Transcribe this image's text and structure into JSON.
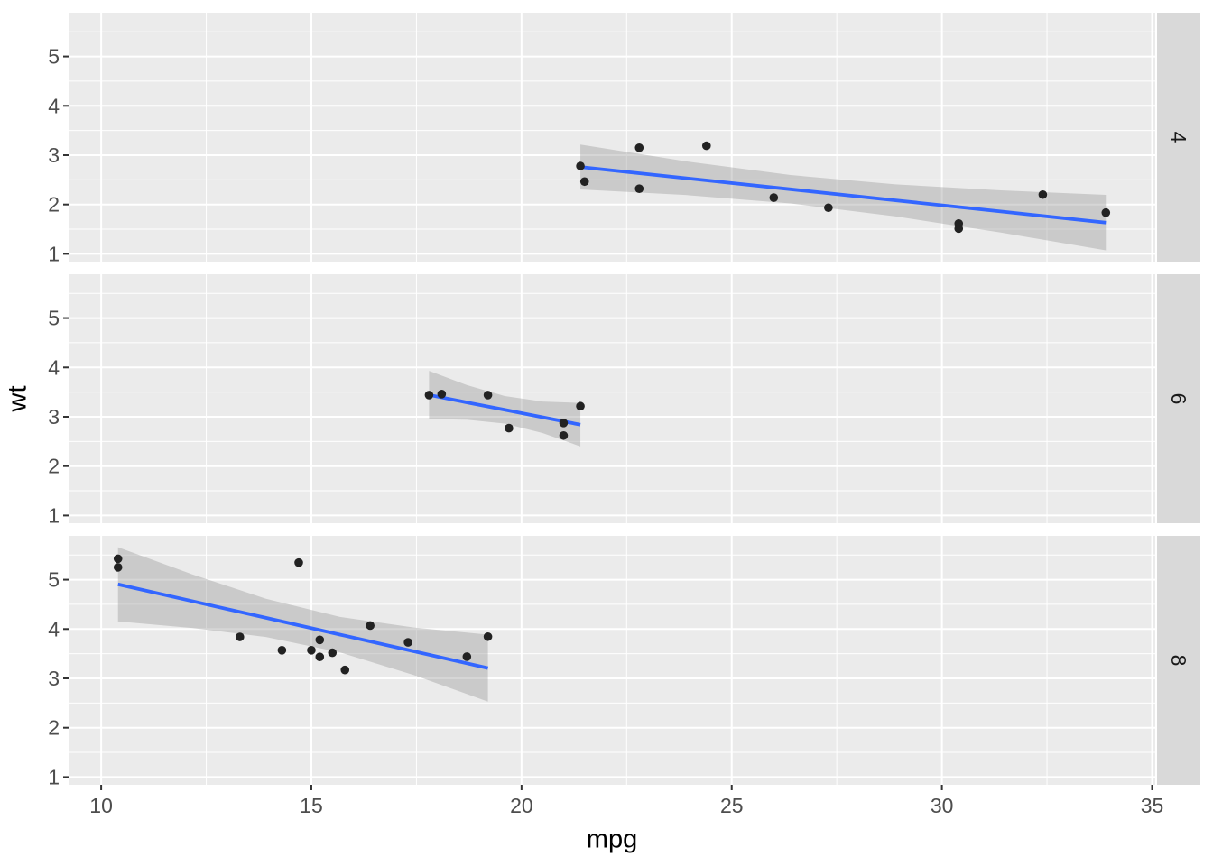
{
  "figure": {
    "kind": "ggplot-faceted-scatter-with-linear-smooth"
  },
  "colors": {
    "background": "#FFFFFF",
    "panel_bg": "#EBEBEB",
    "strip_bg": "#D9D9D9",
    "strip_text": "#1A1A1A",
    "grid": "#FFFFFF",
    "point": "#222222",
    "smooth_line": "#3366FF",
    "ribbon": "rgba(153,153,153,0.4)",
    "axis_text": "#4D4D4D",
    "axis_title": "#000000",
    "tick_mark": "#333333"
  },
  "chart_data": {
    "type": "scatter",
    "title": "",
    "xlabel": "mpg",
    "ylabel": "wt",
    "facet_variable": "cyl",
    "facet_strip_position": "right",
    "grid": true,
    "legend": "none",
    "x_ticks": [
      10,
      15,
      20,
      25,
      30,
      35
    ],
    "y_ticks": [
      1,
      2,
      3,
      4,
      5
    ],
    "x_minor_ticks": [
      12.5,
      17.5,
      22.5,
      27.5,
      32.5
    ],
    "y_minor_ticks": [
      1.5,
      2.5,
      3.5,
      4.5,
      5.5
    ],
    "x_range": [
      9.225,
      35.075
    ],
    "y_range": [
      0.843,
      5.888
    ],
    "facets": [
      {
        "label": "4",
        "points": [
          [
            22.8,
            2.32
          ],
          [
            24.4,
            3.19
          ],
          [
            22.8,
            3.15
          ],
          [
            32.4,
            2.2
          ],
          [
            30.4,
            1.615
          ],
          [
            33.9,
            1.835
          ],
          [
            21.5,
            2.465
          ],
          [
            27.3,
            1.935
          ],
          [
            26.0,
            2.14
          ],
          [
            30.4,
            1.513
          ],
          [
            21.4,
            2.78
          ]
        ],
        "smooth": {
          "x": [
            21.4,
            23.9,
            26.4,
            28.9,
            31.4,
            33.9
          ],
          "y": [
            2.76,
            2.534,
            2.309,
            2.084,
            1.859,
            1.634
          ],
          "ymin": [
            2.306,
            2.193,
            2.022,
            1.76,
            1.432,
            1.072
          ],
          "ymax": [
            3.214,
            2.876,
            2.597,
            2.408,
            2.286,
            2.196
          ]
        }
      },
      {
        "label": "6",
        "points": [
          [
            21.0,
            2.62
          ],
          [
            21.0,
            2.875
          ],
          [
            21.4,
            3.215
          ],
          [
            18.1,
            3.46
          ],
          [
            19.2,
            3.44
          ],
          [
            17.8,
            3.44
          ],
          [
            19.7,
            2.77
          ]
        ],
        "smooth": {
          "x": [
            17.8,
            18.7,
            19.6,
            20.5,
            21.4
          ],
          "y": [
            3.442,
            3.291,
            3.141,
            2.99,
            2.84
          ],
          "ymin": [
            2.954,
            2.94,
            2.862,
            2.672,
            2.4
          ],
          "ymax": [
            3.929,
            3.642,
            3.42,
            3.309,
            3.28
          ]
        }
      },
      {
        "label": "8",
        "points": [
          [
            18.7,
            3.44
          ],
          [
            14.3,
            3.57
          ],
          [
            16.4,
            4.07
          ],
          [
            17.3,
            3.73
          ],
          [
            15.2,
            3.78
          ],
          [
            10.4,
            5.25
          ],
          [
            10.4,
            5.424
          ],
          [
            14.7,
            5.345
          ],
          [
            15.5,
            3.52
          ],
          [
            15.2,
            3.435
          ],
          [
            13.3,
            3.84
          ],
          [
            19.2,
            3.845
          ],
          [
            15.8,
            3.17
          ],
          [
            15.0,
            3.57
          ]
        ],
        "smooth": {
          "x": [
            10.4,
            12.16,
            13.92,
            15.68,
            17.44,
            19.2
          ],
          "y": [
            4.906,
            4.566,
            4.227,
            3.887,
            3.548,
            3.208
          ],
          "ymin": [
            4.153,
            4.022,
            3.839,
            3.528,
            3.066,
            2.53
          ],
          "ymax": [
            5.658,
            5.11,
            4.614,
            4.246,
            4.03,
            3.886
          ]
        }
      }
    ]
  }
}
